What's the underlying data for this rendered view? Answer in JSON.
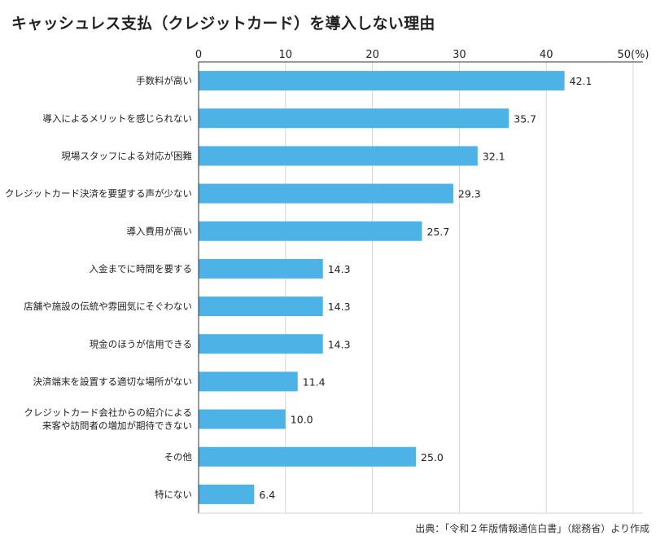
{
  "title": "キャッシュレス支払（クレジットカード）を導入しない理由",
  "source": "出典：「令和２年版情報通信白書」（総務省）より作成",
  "chart_data": {
    "type": "bar",
    "orientation": "horizontal",
    "title": "キャッシュレス支払（クレジットカード）を導入しない理由",
    "xlim": [
      0,
      50
    ],
    "ticks": [
      "0",
      "10",
      "20",
      "30",
      "40",
      "50(%)"
    ],
    "tick_values": [
      0,
      10,
      20,
      30,
      40,
      50
    ],
    "bar_color": "#4db3e6",
    "grid": true,
    "categories": [
      [
        "手数料が高い"
      ],
      [
        "導入によるメリットを感じられない"
      ],
      [
        "現場スタッフによる対応が困難"
      ],
      [
        "クレジットカード決済を要望する声が少ない"
      ],
      [
        "導入費用が高い"
      ],
      [
        "入金までに時間を要する"
      ],
      [
        "店舗や施設の伝統や雰囲気にそぐわない"
      ],
      [
        "現金のほうが信用できる"
      ],
      [
        "決済端末を設置する適切な場所がない"
      ],
      [
        "クレジットカード会社からの紹介による",
        "来客や訪問者の増加が期待できない"
      ],
      [
        "その他"
      ],
      [
        "特にない"
      ]
    ],
    "values": [
      42.1,
      35.7,
      32.1,
      29.3,
      25.7,
      14.3,
      14.3,
      14.3,
      11.4,
      10.0,
      25.0,
      6.4
    ],
    "value_labels": [
      "42.1",
      "35.7",
      "32.1",
      "29.3",
      "25.7",
      "14.3",
      "14.3",
      "14.3",
      "11.4",
      "10.0",
      "25.0",
      "6.4"
    ]
  }
}
